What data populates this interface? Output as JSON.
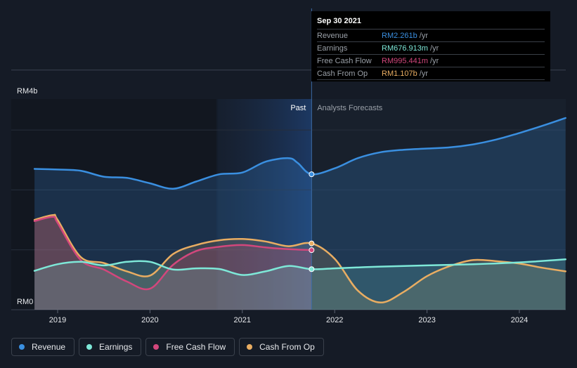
{
  "chart_data": {
    "type": "line",
    "title": "",
    "ylabel": "",
    "y_tick_labels": [
      "RM4b",
      "RM0"
    ],
    "ylim": [
      0,
      4
    ],
    "xlim": [
      2018.75,
      2024.5
    ],
    "x_ticks": [
      2019,
      2020,
      2021,
      2022,
      2023,
      2024
    ],
    "x_tick_labels": [
      "2019",
      "2020",
      "2021",
      "2022",
      "2023",
      "2024"
    ],
    "past_start": 2020.72,
    "divider_x": 2021.75,
    "past_label": "Past",
    "forecast_label": "Analysts Forecasts",
    "series": [
      {
        "name": "Revenue",
        "color": "#3a8fe0",
        "x": [
          2018.75,
          2019.0,
          2019.25,
          2019.5,
          2019.75,
          2020.0,
          2020.25,
          2020.5,
          2020.75,
          2021.0,
          2021.25,
          2021.5,
          2021.6,
          2021.75,
          2022.0,
          2022.25,
          2022.5,
          2022.75,
          2023.0,
          2023.25,
          2023.5,
          2023.75,
          2024.0,
          2024.25,
          2024.5
        ],
        "values": [
          2.35,
          2.34,
          2.32,
          2.22,
          2.2,
          2.11,
          2.02,
          2.14,
          2.26,
          2.29,
          2.47,
          2.53,
          2.45,
          2.261,
          2.36,
          2.53,
          2.63,
          2.67,
          2.69,
          2.71,
          2.76,
          2.84,
          2.95,
          3.07,
          3.2
        ]
      },
      {
        "name": "Earnings",
        "color": "#7ee8d8",
        "x": [
          2018.75,
          2019.0,
          2019.25,
          2019.5,
          2019.75,
          2020.0,
          2020.25,
          2020.5,
          2020.75,
          2021.0,
          2021.25,
          2021.5,
          2021.75,
          2022.0,
          2022.5,
          2023.0,
          2023.5,
          2024.0,
          2024.5
        ],
        "values": [
          0.65,
          0.76,
          0.8,
          0.74,
          0.8,
          0.8,
          0.67,
          0.69,
          0.68,
          0.58,
          0.64,
          0.73,
          0.677,
          0.69,
          0.72,
          0.74,
          0.76,
          0.79,
          0.84
        ]
      },
      {
        "name": "Free Cash Flow",
        "color": "#d2477c",
        "x": [
          2018.75,
          2018.95,
          2019.0,
          2019.25,
          2019.5,
          2019.75,
          2020.0,
          2020.25,
          2020.5,
          2020.75,
          2021.0,
          2021.25,
          2021.5,
          2021.75
        ],
        "values": [
          1.48,
          1.55,
          1.45,
          0.83,
          0.67,
          0.47,
          0.35,
          0.75,
          0.98,
          1.05,
          1.08,
          1.04,
          1.01,
          0.995
        ]
      },
      {
        "name": "Cash From Op",
        "color": "#e9ad62",
        "x": [
          2018.75,
          2018.95,
          2019.0,
          2019.25,
          2019.5,
          2019.75,
          2020.0,
          2020.25,
          2020.5,
          2020.75,
          2021.0,
          2021.25,
          2021.5,
          2021.75,
          2022.0,
          2022.25,
          2022.5,
          2022.75,
          2023.0,
          2023.25,
          2023.5,
          2023.75,
          2024.0,
          2024.25,
          2024.5
        ],
        "values": [
          1.5,
          1.58,
          1.5,
          0.88,
          0.78,
          0.64,
          0.57,
          0.93,
          1.08,
          1.16,
          1.18,
          1.14,
          1.06,
          1.107,
          0.85,
          0.32,
          0.12,
          0.3,
          0.56,
          0.73,
          0.83,
          0.81,
          0.77,
          0.7,
          0.64
        ]
      }
    ],
    "tooltip": {
      "date": "Sep 30 2021",
      "rows": [
        {
          "label": "Revenue",
          "value": "RM2.261b",
          "unit": "/yr",
          "color": "#3a8fe0"
        },
        {
          "label": "Earnings",
          "value": "RM676.913m",
          "unit": "/yr",
          "color": "#7ee8d8"
        },
        {
          "label": "Free Cash Flow",
          "value": "RM995.441m",
          "unit": "/yr",
          "color": "#d2477c"
        },
        {
          "label": "Cash From Op",
          "value": "RM1.107b",
          "unit": "/yr",
          "color": "#e9ad62"
        }
      ]
    }
  },
  "legend": [
    {
      "label": "Revenue",
      "color": "#3a8fe0"
    },
    {
      "label": "Earnings",
      "color": "#7ee8d8"
    },
    {
      "label": "Free Cash Flow",
      "color": "#d2477c"
    },
    {
      "label": "Cash From Op",
      "color": "#e9ad62"
    }
  ]
}
